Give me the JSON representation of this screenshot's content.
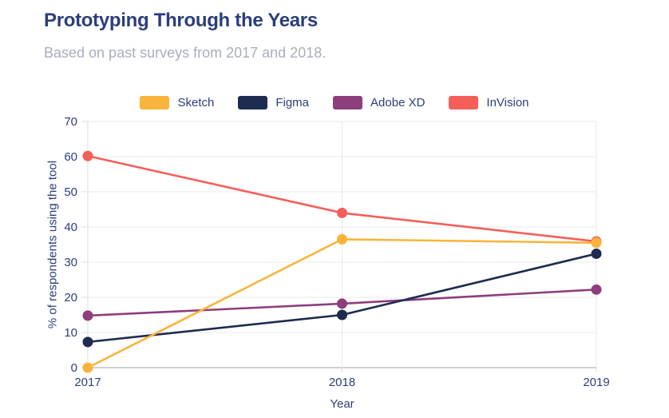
{
  "header": {
    "title": "Prototyping Through the Years",
    "subtitle": "Based on past surveys from 2017 and 2018."
  },
  "chart_data": {
    "type": "line",
    "title": "Prototyping Through the Years",
    "subtitle": "Based on past surveys from 2017 and 2018.",
    "categories": [
      "2017",
      "2018",
      "2019"
    ],
    "series": [
      {
        "name": "Sketch",
        "color": "#F9B43B",
        "values": [
          0,
          36.5,
          35.5
        ]
      },
      {
        "name": "Figma",
        "color": "#1E2C4F",
        "values": [
          7.3,
          15,
          32.4
        ]
      },
      {
        "name": "Adobe XD",
        "color": "#8D3E7C",
        "values": [
          14.8,
          18.2,
          22.2
        ]
      },
      {
        "name": "InVision",
        "color": "#F45F5A",
        "values": [
          60.2,
          44,
          35.9
        ]
      }
    ],
    "draw_order": [
      "InVision",
      "Adobe XD",
      "Figma",
      "Sketch"
    ],
    "xlabel": "Year",
    "ylabel": "% of respondents using the tool",
    "ylim": [
      0,
      70
    ],
    "yticks": [
      0,
      10,
      20,
      30,
      40,
      50,
      60,
      70
    ],
    "grid": true,
    "legend_position": "top"
  },
  "colors": {
    "title_text": "#2C3E7A",
    "subtitle_text": "#A8AEBD",
    "tick_text": "#2C3E7A",
    "gridline": "#E7E8EB",
    "axis_line": "#D9DBE0",
    "zero_line": "#9CA1A8",
    "background": "#FFFFFF"
  }
}
